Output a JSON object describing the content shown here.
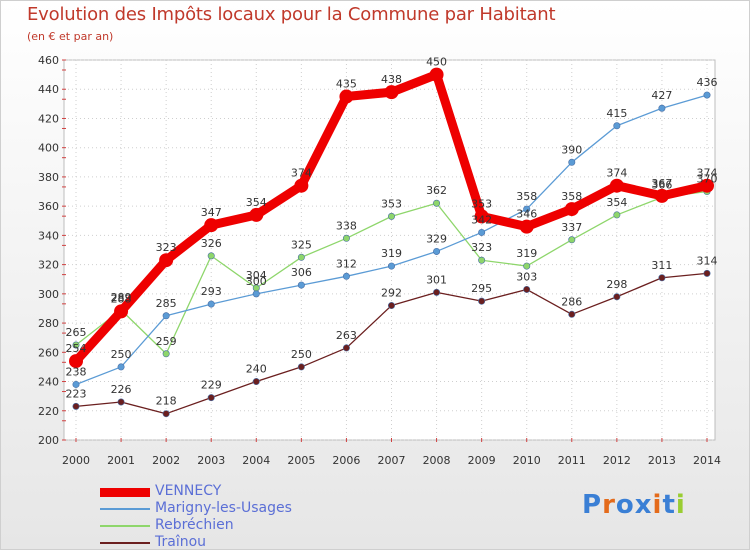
{
  "chart_data": {
    "type": "line",
    "title": "Evolution des Impôts locaux pour la Commune par Habitant",
    "subtitle": "(en € et par an)",
    "xlabel": "",
    "ylabel": "",
    "x": [
      "2000",
      "2001",
      "2002",
      "2003",
      "2004",
      "2005",
      "2006",
      "2007",
      "2008",
      "2009",
      "2010",
      "2011",
      "2012",
      "2013",
      "2014"
    ],
    "ylim": [
      200,
      460
    ],
    "yticks": [
      200,
      220,
      240,
      260,
      280,
      300,
      320,
      340,
      360,
      380,
      400,
      420,
      440,
      460
    ],
    "grid": true,
    "legend_position": "bottom-left",
    "series": [
      {
        "name": "VENNECY",
        "color": "#ee0000",
        "values": [
          254,
          288,
          323,
          347,
          354,
          374,
          435,
          438,
          450,
          353,
          346,
          358,
          374,
          367,
          374
        ],
        "labels": [
          "254",
          "288",
          "323",
          "347",
          "354",
          "374",
          "435",
          "438",
          "450",
          "353",
          "346",
          "358",
          "374",
          "367",
          "374"
        ]
      },
      {
        "name": "Marigny-les-Usages",
        "color": "#5b9bd5",
        "values": [
          238,
          250,
          285,
          293,
          300,
          306,
          312,
          319,
          329,
          342,
          358,
          390,
          415,
          427,
          436
        ],
        "labels": [
          "238",
          "250",
          "285",
          "293",
          "300",
          "306",
          "312",
          "319",
          "329",
          "342",
          "358",
          "390",
          "415",
          "427",
          "436"
        ]
      },
      {
        "name": "Rebréchien",
        "color": "#8ed66b",
        "values": [
          265,
          289,
          259,
          326,
          304,
          325,
          338,
          353,
          362,
          323,
          319,
          337,
          354,
          366,
          370
        ],
        "labels": [
          "265",
          "289",
          "259",
          "326",
          "304",
          "325",
          "338",
          "353",
          "362",
          "323",
          "319",
          "337",
          "354",
          "366",
          "370"
        ]
      },
      {
        "name": "Traînou",
        "color": "#6b1f1f",
        "values": [
          223,
          226,
          218,
          229,
          240,
          250,
          263,
          292,
          301,
          295,
          303,
          286,
          298,
          311,
          314
        ],
        "labels": [
          "223",
          "226",
          "218",
          "229",
          "240",
          "250",
          "263",
          "292",
          "301",
          "295",
          "303",
          "286",
          "298",
          "311",
          "314"
        ]
      }
    ]
  },
  "legend": {
    "items": [
      {
        "label": "VENNECY",
        "color": "#ee0000"
      },
      {
        "label": "Marigny-les-Usages",
        "color": "#5b9bd5"
      },
      {
        "label": "Rebréchien",
        "color": "#8ed66b"
      },
      {
        "label": "Traînou",
        "color": "#6b1f1f"
      }
    ]
  },
  "logo": {
    "letters": [
      "P",
      "r",
      "o",
      "x",
      "i",
      "t",
      "i"
    ],
    "colors": [
      "#3a7fd5",
      "#e46b1b",
      "#3a7fd5",
      "#3a7fd5",
      "#e46b1b",
      "#3a7fd5",
      "#9acd32"
    ]
  }
}
